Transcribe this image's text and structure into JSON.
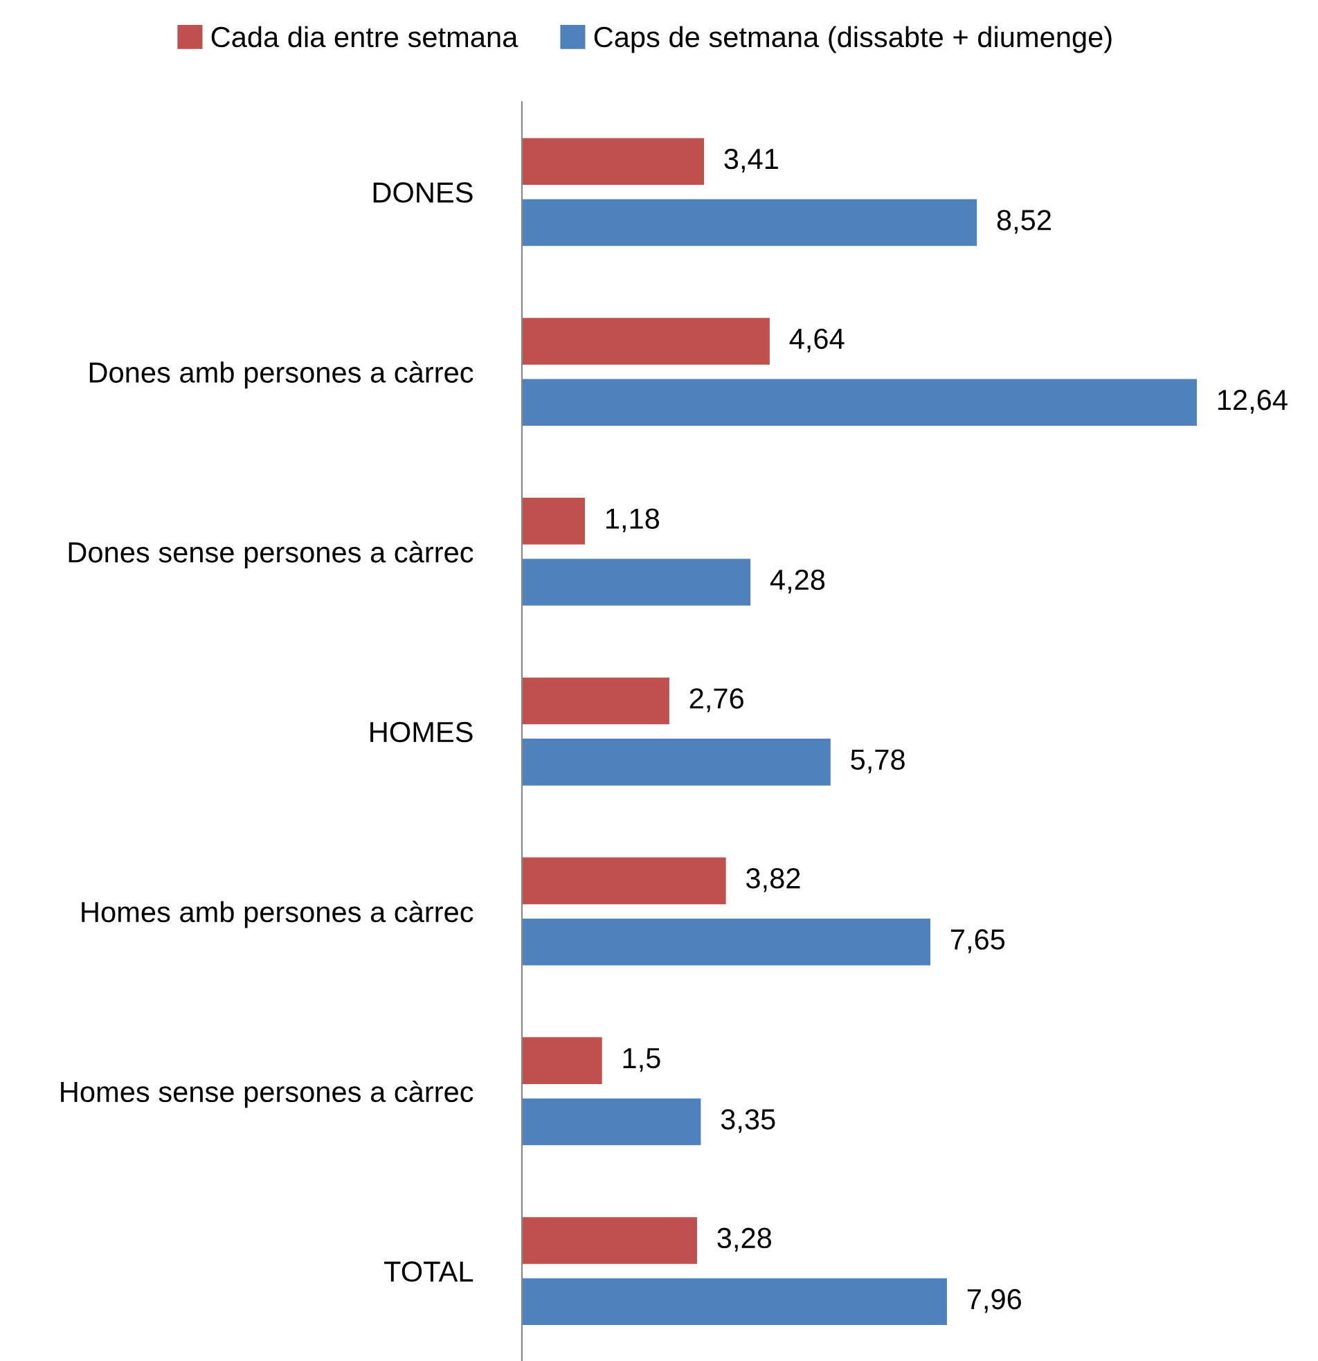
{
  "chart_data": {
    "type": "bar",
    "orientation": "horizontal",
    "categories": [
      "DONES",
      "Dones amb persones a càrrec",
      "Dones sense persones a càrrec",
      "HOMES",
      "Homes amb persones a càrrec",
      "Homes sense persones a càrrec",
      "TOTAL"
    ],
    "series": [
      {
        "name": "Cada dia entre setmana",
        "color": "#c0504d",
        "values": [
          3.41,
          4.64,
          1.18,
          2.76,
          3.82,
          1.5,
          3.28
        ],
        "value_labels": [
          "3,41",
          "4,64",
          "1,18",
          "2,76",
          "3,82",
          "1,5",
          "3,28"
        ]
      },
      {
        "name": "Caps de setmana (dissabte + diumenge)",
        "color": "#4f81bd",
        "values": [
          8.52,
          12.64,
          4.28,
          5.78,
          7.65,
          3.35,
          7.96
        ],
        "value_labels": [
          "8,52",
          "12,64",
          "4,28",
          "5,78",
          "7,65",
          "3,35",
          "7,96"
        ]
      }
    ],
    "tick_labels": "y",
    "legend": "top",
    "grid": false
  }
}
